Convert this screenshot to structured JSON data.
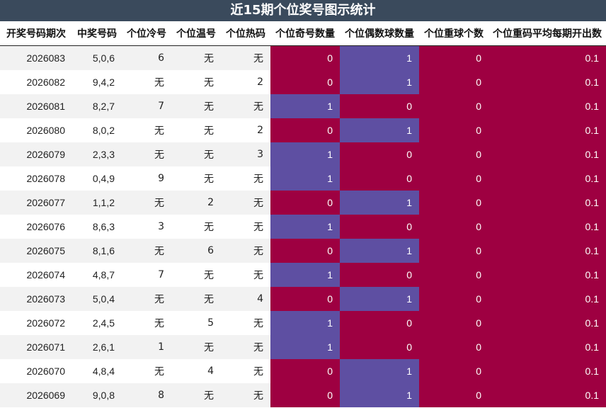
{
  "title": "近15期个位奖号图示统计",
  "headers": [
    "开奖号码期次",
    "中奖号码",
    "个位冷号",
    "个位温号",
    "个位热码",
    "个位奇号数量",
    "个位偶数球数量",
    "个位重球个数",
    "个位重码平均每期开出数"
  ],
  "colors": {
    "title_bg": "#3a4a5c",
    "high": "#9e0041",
    "low": "#5e4fa2"
  },
  "rows": [
    {
      "period": "2026083",
      "numbers": "5,0,6",
      "cold": "6",
      "warm": "无",
      "hot": "无",
      "odd": "0",
      "even": "1",
      "repeat": "0",
      "avg": "0.1"
    },
    {
      "period": "2026082",
      "numbers": "9,4,2",
      "cold": "无",
      "warm": "无",
      "hot": "2",
      "odd": "0",
      "even": "1",
      "repeat": "0",
      "avg": "0.1"
    },
    {
      "period": "2026081",
      "numbers": "8,2,7",
      "cold": "7",
      "warm": "无",
      "hot": "无",
      "odd": "1",
      "even": "0",
      "repeat": "0",
      "avg": "0.1"
    },
    {
      "period": "2026080",
      "numbers": "8,0,2",
      "cold": "无",
      "warm": "无",
      "hot": "2",
      "odd": "0",
      "even": "1",
      "repeat": "0",
      "avg": "0.1"
    },
    {
      "period": "2026079",
      "numbers": "2,3,3",
      "cold": "无",
      "warm": "无",
      "hot": "3",
      "odd": "1",
      "even": "0",
      "repeat": "0",
      "avg": "0.1"
    },
    {
      "period": "2026078",
      "numbers": "0,4,9",
      "cold": "9",
      "warm": "无",
      "hot": "无",
      "odd": "1",
      "even": "0",
      "repeat": "0",
      "avg": "0.1"
    },
    {
      "period": "2026077",
      "numbers": "1,1,2",
      "cold": "无",
      "warm": "2",
      "hot": "无",
      "odd": "0",
      "even": "1",
      "repeat": "0",
      "avg": "0.1"
    },
    {
      "period": "2026076",
      "numbers": "8,6,3",
      "cold": "3",
      "warm": "无",
      "hot": "无",
      "odd": "1",
      "even": "0",
      "repeat": "0",
      "avg": "0.1"
    },
    {
      "period": "2026075",
      "numbers": "8,1,6",
      "cold": "无",
      "warm": "6",
      "hot": "无",
      "odd": "0",
      "even": "1",
      "repeat": "0",
      "avg": "0.1"
    },
    {
      "period": "2026074",
      "numbers": "4,8,7",
      "cold": "7",
      "warm": "无",
      "hot": "无",
      "odd": "1",
      "even": "0",
      "repeat": "0",
      "avg": "0.1"
    },
    {
      "period": "2026073",
      "numbers": "5,0,4",
      "cold": "无",
      "warm": "无",
      "hot": "4",
      "odd": "0",
      "even": "1",
      "repeat": "0",
      "avg": "0.1"
    },
    {
      "period": "2026072",
      "numbers": "2,4,5",
      "cold": "无",
      "warm": "5",
      "hot": "无",
      "odd": "1",
      "even": "0",
      "repeat": "0",
      "avg": "0.1"
    },
    {
      "period": "2026071",
      "numbers": "2,6,1",
      "cold": "1",
      "warm": "无",
      "hot": "无",
      "odd": "1",
      "even": "0",
      "repeat": "0",
      "avg": "0.1"
    },
    {
      "period": "2026070",
      "numbers": "4,8,4",
      "cold": "无",
      "warm": "4",
      "hot": "无",
      "odd": "0",
      "even": "1",
      "repeat": "0",
      "avg": "0.1"
    },
    {
      "period": "2026069",
      "numbers": "9,0,8",
      "cold": "8",
      "warm": "无",
      "hot": "无",
      "odd": "0",
      "even": "1",
      "repeat": "0",
      "avg": "0.1"
    }
  ]
}
